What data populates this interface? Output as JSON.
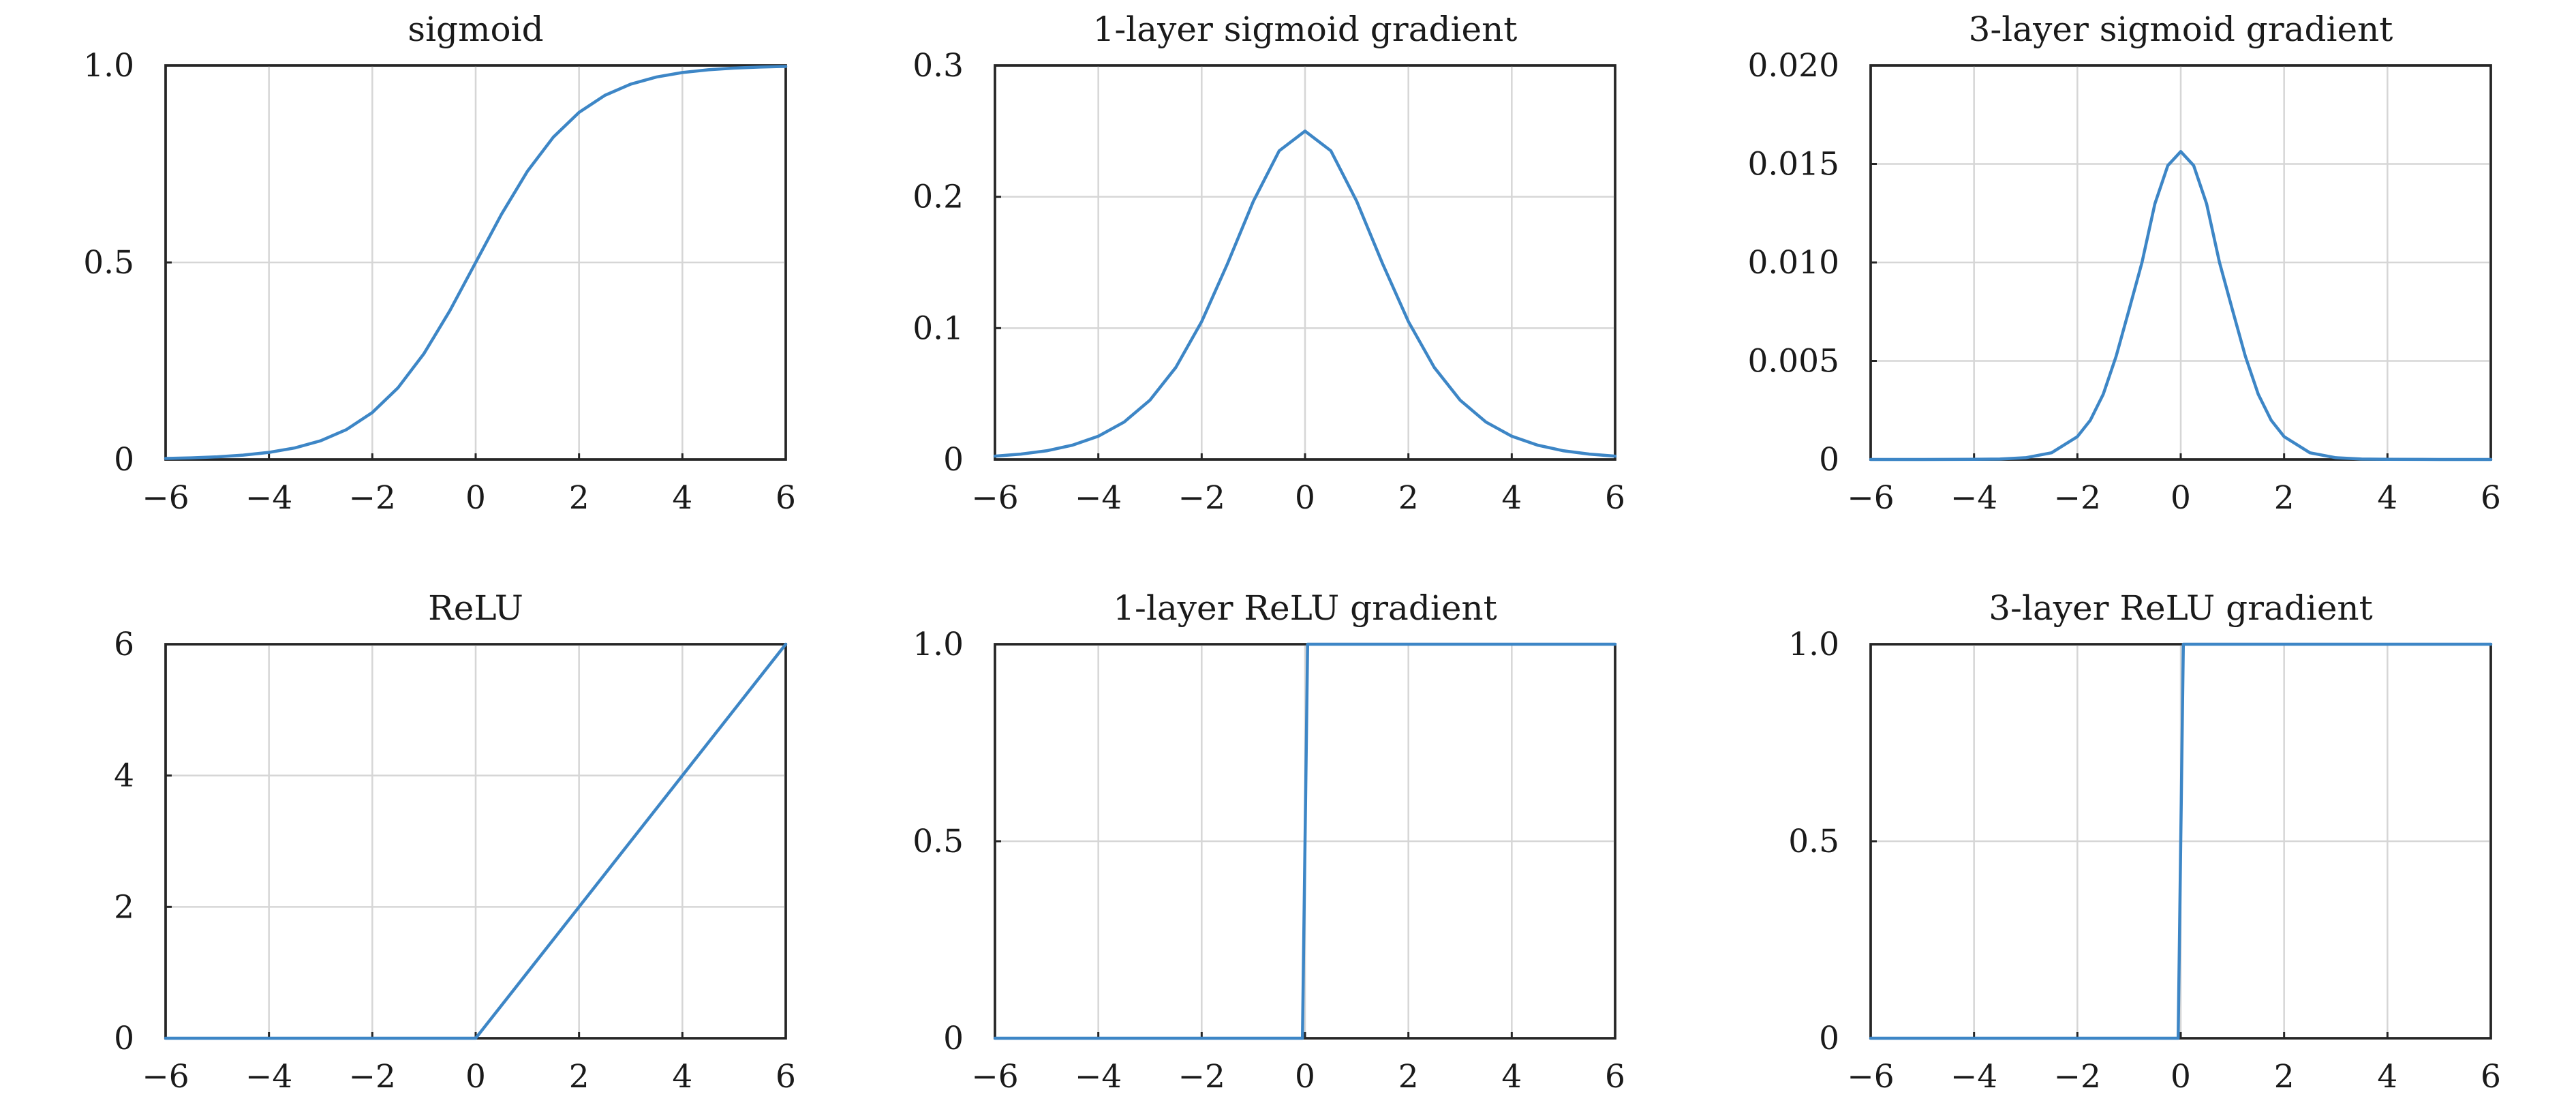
{
  "colors": {
    "series": "#3d86c6",
    "grid": "#d6d6d6",
    "axes": "#262626"
  },
  "chart_data": [
    {
      "type": "line",
      "title": "sigmoid",
      "xlabel": "",
      "ylabel": "",
      "xlim": [
        -6,
        6
      ],
      "ylim": [
        0,
        1
      ],
      "grid": true,
      "xticks": [
        -6,
        -4,
        -2,
        0,
        2,
        4,
        6
      ],
      "xtick_labels": [
        "−6",
        "−4",
        "−2",
        "0",
        "2",
        "4",
        "6"
      ],
      "yticks": [
        0,
        0.5,
        1
      ],
      "ytick_labels": [
        "0",
        "0.5",
        "1.0"
      ],
      "series": [
        {
          "x": [
            -6,
            -5.5,
            -5,
            -4.5,
            -4,
            -3.5,
            -3,
            -2.5,
            -2,
            -1.5,
            -1,
            -0.5,
            0,
            0.5,
            1,
            1.5,
            2,
            2.5,
            3,
            3.5,
            4,
            4.5,
            5,
            5.5,
            6
          ],
          "y": [
            0.0025,
            0.0041,
            0.0067,
            0.011,
            0.018,
            0.0293,
            0.0474,
            0.0759,
            0.1192,
            0.1824,
            0.2689,
            0.3775,
            0.5,
            0.6225,
            0.7311,
            0.8176,
            0.8808,
            0.9241,
            0.9526,
            0.9707,
            0.982,
            0.989,
            0.9933,
            0.9959,
            0.9975
          ]
        }
      ]
    },
    {
      "type": "line",
      "title": "1-layer sigmoid gradient",
      "xlabel": "",
      "ylabel": "",
      "xlim": [
        -6,
        6
      ],
      "ylim": [
        0,
        0.3
      ],
      "grid": true,
      "xticks": [
        -6,
        -4,
        -2,
        0,
        2,
        4,
        6
      ],
      "xtick_labels": [
        "−6",
        "−4",
        "−2",
        "0",
        "2",
        "4",
        "6"
      ],
      "yticks": [
        0,
        0.1,
        0.2,
        0.3
      ],
      "ytick_labels": [
        "0",
        "0.1",
        "0.2",
        "0.3"
      ],
      "series": [
        {
          "x": [
            -6,
            -5.5,
            -5,
            -4.5,
            -4,
            -3.5,
            -3,
            -2.5,
            -2,
            -1.5,
            -1,
            -0.5,
            0,
            0.5,
            1,
            1.5,
            2,
            2.5,
            3,
            3.5,
            4,
            4.5,
            5,
            5.5,
            6
          ],
          "y": [
            0.0025,
            0.0041,
            0.0066,
            0.0109,
            0.0177,
            0.0285,
            0.0452,
            0.0701,
            0.105,
            0.1491,
            0.1966,
            0.235,
            0.25,
            0.235,
            0.1966,
            0.1491,
            0.105,
            0.0701,
            0.0452,
            0.0285,
            0.0177,
            0.0109,
            0.0066,
            0.0041,
            0.0025
          ]
        }
      ]
    },
    {
      "type": "line",
      "title": "3-layer sigmoid gradient",
      "xlabel": "",
      "ylabel": "",
      "xlim": [
        -6,
        6
      ],
      "ylim": [
        0,
        0.02
      ],
      "grid": true,
      "xticks": [
        -6,
        -4,
        -2,
        0,
        2,
        4,
        6
      ],
      "xtick_labels": [
        "−6",
        "−4",
        "−2",
        "0",
        "2",
        "4",
        "6"
      ],
      "yticks": [
        0,
        0.005,
        0.01,
        0.015,
        0.02
      ],
      "ytick_labels": [
        "0",
        "0.005",
        "0.010",
        "0.015",
        "0.020"
      ],
      "series": [
        {
          "x": [
            -6,
            -5,
            -4,
            -3.5,
            -3,
            -2.5,
            -2,
            -1.75,
            -1.5,
            -1.25,
            -1,
            -0.75,
            -0.5,
            -0.25,
            0,
            0.25,
            0.5,
            0.75,
            1,
            1.25,
            1.5,
            1.75,
            2,
            2.5,
            3,
            3.5,
            4,
            5,
            6
          ],
          "y": [
            0,
            0,
            1e-05,
            2e-05,
            9e-05,
            0.00034,
            0.00116,
            0.00199,
            0.00331,
            0.00524,
            0.0076,
            0.01,
            0.01298,
            0.01492,
            0.01563,
            0.01492,
            0.01298,
            0.01,
            0.0076,
            0.00524,
            0.00331,
            0.00199,
            0.00116,
            0.00034,
            9e-05,
            2e-05,
            1e-05,
            0,
            0
          ]
        }
      ]
    },
    {
      "type": "line",
      "title": "ReLU",
      "xlabel": "",
      "ylabel": "",
      "xlim": [
        -6,
        6
      ],
      "ylim": [
        0,
        6
      ],
      "grid": true,
      "xticks": [
        -6,
        -4,
        -2,
        0,
        2,
        4,
        6
      ],
      "xtick_labels": [
        "−6",
        "−4",
        "−2",
        "0",
        "2",
        "4",
        "6"
      ],
      "yticks": [
        0,
        2,
        4,
        6
      ],
      "ytick_labels": [
        "0",
        "2",
        "4",
        "6"
      ],
      "series": [
        {
          "x": [
            -6,
            0,
            6
          ],
          "y": [
            0,
            0,
            6
          ]
        }
      ]
    },
    {
      "type": "line",
      "title": "1-layer ReLU gradient",
      "xlabel": "",
      "ylabel": "",
      "xlim": [
        -6,
        6
      ],
      "ylim": [
        0,
        1
      ],
      "grid": true,
      "xticks": [
        -6,
        -4,
        -2,
        0,
        2,
        4,
        6
      ],
      "xtick_labels": [
        "−6",
        "−4",
        "−2",
        "0",
        "2",
        "4",
        "6"
      ],
      "yticks": [
        0,
        0.5,
        1
      ],
      "ytick_labels": [
        "0",
        "0.5",
        "1.0"
      ],
      "series": [
        {
          "x": [
            -6,
            -0.05,
            0.05,
            6
          ],
          "y": [
            0,
            0,
            1,
            1
          ]
        }
      ]
    },
    {
      "type": "line",
      "title": "3-layer ReLU gradient",
      "xlabel": "",
      "ylabel": "",
      "xlim": [
        -6,
        6
      ],
      "ylim": [
        0,
        1
      ],
      "grid": true,
      "xticks": [
        -6,
        -4,
        -2,
        0,
        2,
        4,
        6
      ],
      "xtick_labels": [
        "−6",
        "−4",
        "−2",
        "0",
        "2",
        "4",
        "6"
      ],
      "yticks": [
        0,
        0.5,
        1
      ],
      "ytick_labels": [
        "0",
        "0.5",
        "1.0"
      ],
      "series": [
        {
          "x": [
            -6,
            -0.05,
            0.05,
            6
          ],
          "y": [
            0,
            0,
            1,
            1
          ]
        }
      ]
    }
  ]
}
